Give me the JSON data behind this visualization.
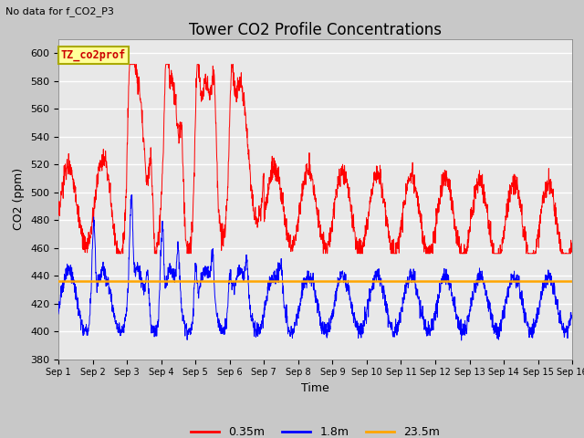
{
  "title": "Tower CO2 Profile Concentrations",
  "top_left_text": "No data for f_CO2_P3",
  "box_label": "TZ_co2prof",
  "xlabel": "Time",
  "ylabel": "CO2 (ppm)",
  "ylim": [
    380,
    610
  ],
  "yticks": [
    380,
    400,
    420,
    440,
    460,
    480,
    500,
    520,
    540,
    560,
    580,
    600
  ],
  "xlim_days": [
    0,
    15
  ],
  "xtick_labels": [
    "Sep 1",
    "Sep 2",
    "Sep 3",
    "Sep 4",
    "Sep 5",
    "Sep 6",
    "Sep 7",
    "Sep 8",
    "Sep 9",
    "Sep 10",
    "Sep 11",
    "Sep 12",
    "Sep 13",
    "Sep 14",
    "Sep 15",
    "Sep 16"
  ],
  "fig_bg_color": "#c8c8c8",
  "plot_bg_color": "#e8e8e8",
  "red_color": "#ff0000",
  "blue_color": "#0000ff",
  "orange_color": "#ffa500",
  "legend_labels": [
    "0.35m",
    "1.8m",
    "23.5m"
  ],
  "orange_line_value": 436,
  "title_fontsize": 12,
  "label_fontsize": 9,
  "tick_fontsize": 8
}
